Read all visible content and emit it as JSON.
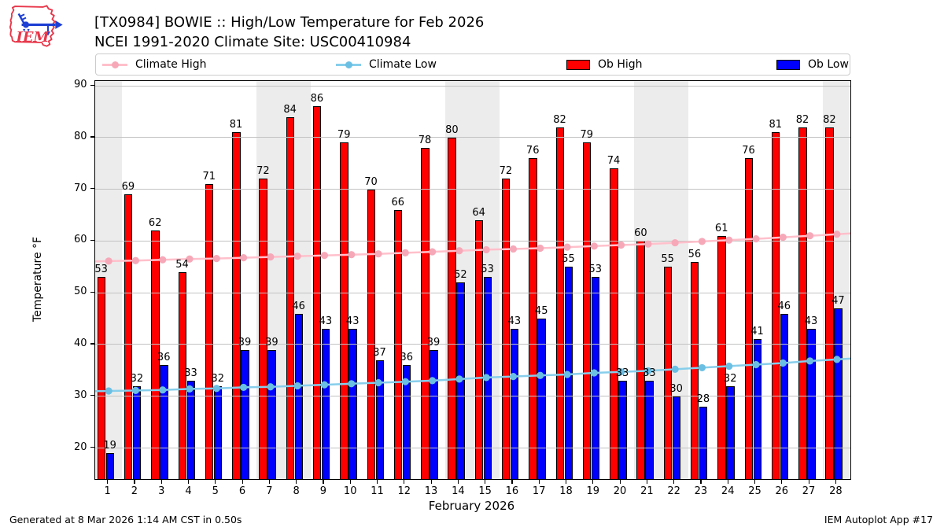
{
  "header": {
    "title_line1": "[TX0984] BOWIE :: High/Low Temperature for Feb 2026",
    "title_line2": "NCEI 1991-2020 Climate Site: USC00410984"
  },
  "logo": {
    "text": "IEM"
  },
  "legend": [
    {
      "label": "Climate High",
      "type": "line",
      "line_color": "#ffc0cb",
      "marker_color": "#f7a8b8"
    },
    {
      "label": "Climate Low",
      "type": "line",
      "line_color": "#87ceeb",
      "marker_color": "#6bbfe3"
    },
    {
      "label": "Ob High",
      "type": "patch",
      "color": "#ff0000"
    },
    {
      "label": "Ob Low",
      "type": "patch",
      "color": "#0000ff"
    }
  ],
  "chart_data": {
    "type": "bar",
    "title": "[TX0984] BOWIE :: High/Low Temperature for Feb 2026",
    "subtitle": "NCEI 1991-2020 Climate Site: USC00410984",
    "xlabel": "February 2026",
    "ylabel": "Temperature °F",
    "xlim": [
      0.5,
      28.5
    ],
    "ylim": [
      14,
      91
    ],
    "yticks": [
      20,
      30,
      40,
      50,
      60,
      70,
      80,
      90
    ],
    "days": [
      1,
      2,
      3,
      4,
      5,
      6,
      7,
      8,
      9,
      10,
      11,
      12,
      13,
      14,
      15,
      16,
      17,
      18,
      19,
      20,
      21,
      22,
      23,
      24,
      25,
      26,
      27,
      28
    ],
    "series": [
      {
        "name": "Ob High",
        "type": "bar",
        "color": "#ff0000",
        "values": [
          53,
          69,
          62,
          54,
          71,
          81,
          72,
          84,
          86,
          79,
          70,
          66,
          78,
          80,
          64,
          72,
          76,
          82,
          79,
          74,
          60,
          55,
          56,
          61,
          76,
          81,
          82,
          82
        ]
      },
      {
        "name": "Ob Low",
        "type": "bar",
        "color": "#0000ff",
        "values": [
          19,
          32,
          36,
          33,
          32,
          39,
          39,
          46,
          43,
          43,
          37,
          36,
          39,
          52,
          53,
          43,
          45,
          55,
          53,
          33,
          33,
          30,
          28,
          32,
          41,
          46,
          43,
          47
        ]
      },
      {
        "name": "Climate High",
        "type": "line",
        "color": "#ffc0cb",
        "marker_color": "#f7a8b8",
        "values": [
          56.2,
          56.3,
          56.45,
          56.6,
          56.7,
          56.85,
          57.0,
          57.15,
          57.3,
          57.45,
          57.6,
          57.8,
          58.0,
          58.2,
          58.4,
          58.55,
          58.7,
          58.9,
          59.1,
          59.3,
          59.5,
          59.75,
          60.0,
          60.25,
          60.5,
          60.8,
          61.1,
          61.4
        ]
      },
      {
        "name": "Climate Low",
        "type": "line",
        "color": "#87ceeb",
        "marker_color": "#6bbfe3",
        "values": [
          31.1,
          31.2,
          31.3,
          31.5,
          31.6,
          31.8,
          31.9,
          32.1,
          32.3,
          32.5,
          32.7,
          32.9,
          33.1,
          33.4,
          33.7,
          33.9,
          34.1,
          34.3,
          34.6,
          34.8,
          35.0,
          35.3,
          35.6,
          35.9,
          36.2,
          36.5,
          36.9,
          37.2
        ]
      }
    ],
    "weekend_bands": [
      [
        0.5,
        1.5
      ],
      [
        6.5,
        8.5
      ],
      [
        13.5,
        15.5
      ],
      [
        20.5,
        22.5
      ],
      [
        27.5,
        28.5
      ]
    ],
    "band_color": "#ececec",
    "grid": "horizontal",
    "legend_position": "top"
  },
  "footer": {
    "left": "Generated at 8 Mar 2026 1:14 AM CST in 0.50s",
    "right": "IEM Autoplot App #17"
  }
}
